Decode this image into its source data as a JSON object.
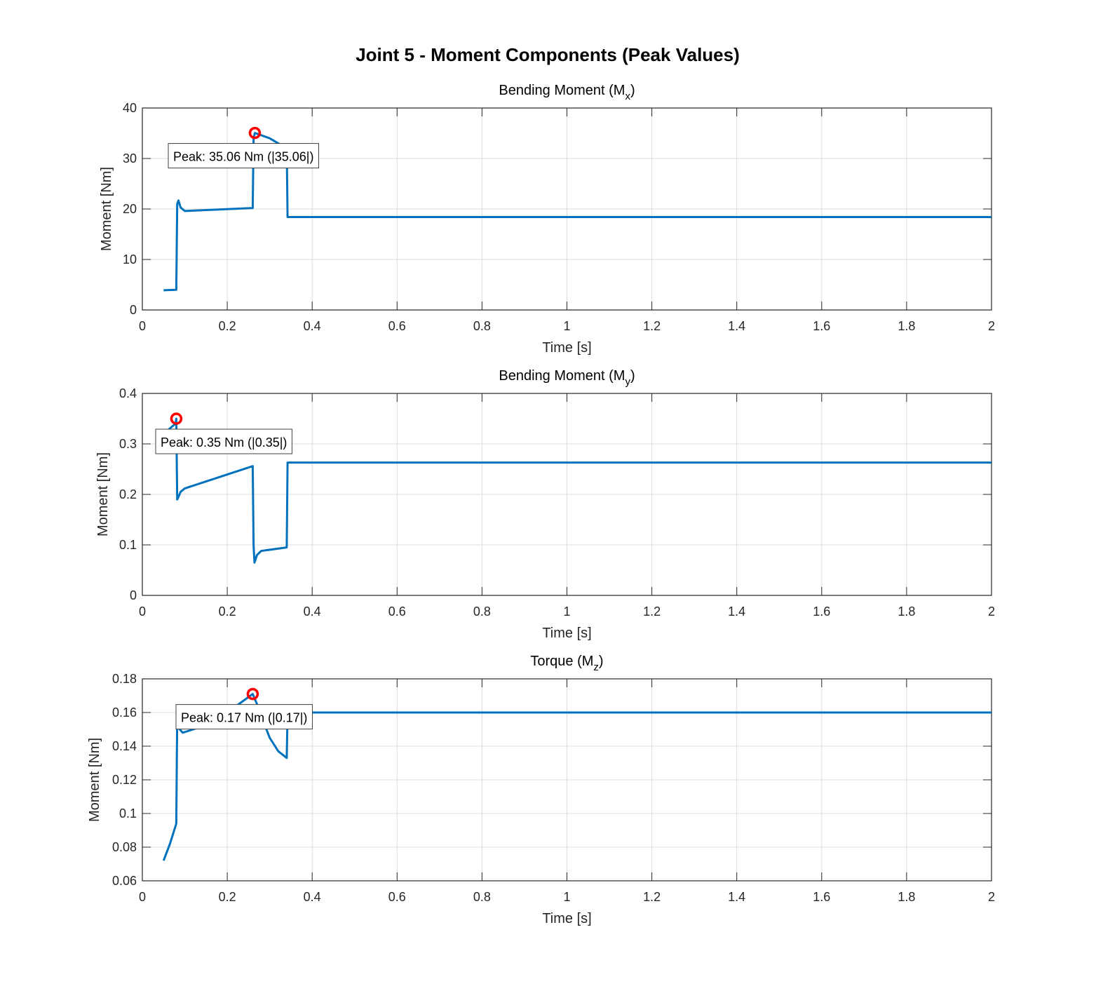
{
  "figure_title": "Joint 5 - Moment Components (Peak Values)",
  "colors": {
    "line": "#0072BD",
    "peak": "#FF0000",
    "grid": "#DCDCDC",
    "axis": "#262626"
  },
  "chart_data": [
    {
      "type": "line",
      "title": "Bending Moment (M",
      "title_sub": "x",
      "title_end": ")",
      "xlabel": "Time [s]",
      "ylabel": "Moment [Nm]",
      "xlim": [
        0,
        2
      ],
      "ylim": [
        0,
        40
      ],
      "xticks": [
        0,
        0.2,
        0.4,
        0.6,
        0.8,
        1,
        1.2,
        1.4,
        1.6,
        1.8,
        2
      ],
      "yticks": [
        0,
        10,
        20,
        30,
        40
      ],
      "grid": true,
      "series": [
        {
          "name": "Mx",
          "x": [
            0.05,
            0.08,
            0.082,
            0.085,
            0.09,
            0.1,
            0.26,
            0.262,
            0.265,
            0.3,
            0.34,
            0.342,
            2
          ],
          "y": [
            3.9,
            4.0,
            21.0,
            21.7,
            20.3,
            19.6,
            20.2,
            34.0,
            35.06,
            34.0,
            32.0,
            18.4,
            18.4
          ]
        }
      ],
      "peak": {
        "x": 0.265,
        "y": 35.06,
        "label": "Peak: 35.06 Nm (|35.06|)"
      }
    },
    {
      "type": "line",
      "title": "Bending Moment (M",
      "title_sub": "y",
      "title_end": ")",
      "xlabel": "Time [s]",
      "ylabel": "Moment [Nm]",
      "xlim": [
        0,
        2
      ],
      "ylim": [
        0,
        0.4
      ],
      "xticks": [
        0,
        0.2,
        0.4,
        0.6,
        0.8,
        1,
        1.2,
        1.4,
        1.6,
        1.8,
        2
      ],
      "yticks": [
        0,
        0.1,
        0.2,
        0.3,
        0.4
      ],
      "grid": true,
      "series": [
        {
          "name": "My",
          "x": [
            0.05,
            0.078,
            0.08,
            0.082,
            0.085,
            0.09,
            0.1,
            0.26,
            0.262,
            0.264,
            0.27,
            0.28,
            0.34,
            0.342,
            2
          ],
          "y": [
            0.32,
            0.34,
            0.35,
            0.19,
            0.195,
            0.205,
            0.212,
            0.256,
            0.1,
            0.065,
            0.08,
            0.088,
            0.095,
            0.263,
            0.263
          ]
        }
      ],
      "peak": {
        "x": 0.08,
        "y": 0.35,
        "label": "Peak: 0.35 Nm (|0.35|)"
      }
    },
    {
      "type": "line",
      "title": "Torque (M",
      "title_sub": "z",
      "title_end": ")",
      "xlabel": "Time [s]",
      "ylabel": "Moment [Nm]",
      "xlim": [
        0,
        2
      ],
      "ylim": [
        0.06,
        0.18
      ],
      "xticks": [
        0,
        0.2,
        0.4,
        0.6,
        0.8,
        1,
        1.2,
        1.4,
        1.6,
        1.8,
        2
      ],
      "yticks": [
        0.06,
        0.08,
        0.1,
        0.12,
        0.14,
        0.16,
        0.18
      ],
      "grid": true,
      "series": [
        {
          "name": "Mz",
          "x": [
            0.05,
            0.065,
            0.08,
            0.082,
            0.088,
            0.095,
            0.12,
            0.15,
            0.2,
            0.26,
            0.27,
            0.28,
            0.3,
            0.32,
            0.34,
            0.342,
            2
          ],
          "y": [
            0.072,
            0.082,
            0.094,
            0.158,
            0.15,
            0.148,
            0.15,
            0.153,
            0.16,
            0.171,
            0.165,
            0.158,
            0.145,
            0.137,
            0.133,
            0.16,
            0.16
          ]
        }
      ],
      "peak": {
        "x": 0.26,
        "y": 0.171,
        "label": "Peak: 0.17 Nm (|0.17|)"
      }
    }
  ]
}
